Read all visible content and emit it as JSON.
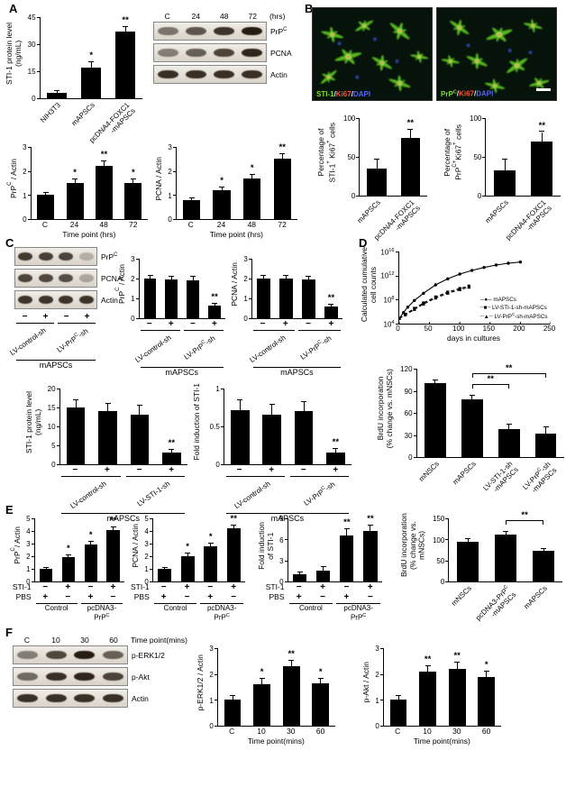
{
  "panels": {
    "A": "A",
    "B": "B",
    "C": "C",
    "D": "D",
    "E": "E",
    "F": "F"
  },
  "colors": {
    "bar": "#000000",
    "cell_green": "#55b31c",
    "ki67_red": "#ff5030",
    "dapi_blue": "#5566ff",
    "scale_bar": "#ffffff"
  },
  "micrographs": {
    "m1": {
      "caption": [
        {
          "text": "STI-1",
          "color": "#7de02a"
        },
        {
          "text": "/",
          "color": "#e8e8e8"
        },
        {
          "text": "Ki67",
          "color": "#ff5030"
        },
        {
          "text": "/",
          "color": "#e8e8e8"
        },
        {
          "text": "DAPI",
          "color": "#5566ff"
        }
      ]
    },
    "m2": {
      "caption": [
        {
          "text": "PrP^{C}",
          "color": "#7de02a"
        },
        {
          "text": "/",
          "color": "#e8e8e8"
        },
        {
          "text": "Ki67",
          "color": "#ff5030"
        },
        {
          "text": "/",
          "color": "#e8e8e8"
        },
        {
          "text": "DAPI",
          "color": "#5566ff"
        }
      ],
      "scale_bar": true
    }
  },
  "blots": [
    {
      "id": "blotA",
      "header": {
        "labels": [
          "C",
          "24",
          "48",
          "72"
        ],
        "suffix": "(hrs)"
      },
      "rows": [
        {
          "label": "PrP^{C}",
          "bands": [
            0.55,
            0.7,
            0.88,
            1
          ]
        },
        {
          "label": "PCNA",
          "bands": [
            0.5,
            0.65,
            0.8,
            0.95
          ]
        },
        {
          "label": "Actin",
          "bands": [
            0.9,
            0.9,
            0.9,
            0.9
          ]
        }
      ]
    },
    {
      "id": "blotC",
      "rows": [
        {
          "label": "PrP^{C}",
          "bands": [
            0.85,
            0.82,
            0.8,
            0.25
          ]
        },
        {
          "label": "PCNA",
          "bands": [
            0.8,
            0.78,
            0.75,
            0.3
          ]
        },
        {
          "label": "Actin",
          "bands": [
            0.88,
            0.88,
            0.88,
            0.88
          ]
        }
      ],
      "matrix": {
        "rows": [
          {
            "label": "",
            "cells": [
              "−",
              "+",
              "−",
              "+"
            ]
          }
        ],
        "rot_groups": true,
        "groups": [
          {
            "label": "LV-control-sh",
            "from": 0,
            "to": 1
          },
          {
            "label": "LV-PrP^{C}-sh",
            "from": 2,
            "to": 3
          }
        ],
        "footer": "mAPSCs"
      }
    },
    {
      "id": "blotF",
      "header": {
        "labels": [
          "C",
          "10",
          "30",
          "60"
        ],
        "suffix": "Time point(mins)"
      },
      "rows": [
        {
          "label": "p-ERK1/2",
          "bands": [
            0.5,
            0.78,
            1,
            0.65
          ]
        },
        {
          "label": "p-Akt",
          "bands": [
            0.6,
            0.9,
            0.95,
            0.8
          ]
        },
        {
          "label": "Actin",
          "bands": [
            0.9,
            0.9,
            0.9,
            0.9
          ]
        }
      ]
    }
  ],
  "chart_data": [
    {
      "id": "a1",
      "type": "bar",
      "ylabel": "STI-1 protein level\n(ng/mL)",
      "ymax": 45,
      "yticks": [
        0,
        15,
        30,
        45
      ],
      "values": [
        3,
        17,
        37
      ],
      "errors": [
        1,
        3,
        2.5
      ],
      "sig": [
        "",
        "*",
        "**"
      ],
      "xrot": true,
      "xlabels": [
        "NIH3T3",
        "mAPSCs",
        "pcDNA4-FOXC1\n-mAPSCs"
      ]
    },
    {
      "id": "a2",
      "type": "bar",
      "ylabel": "PrP^{C} / Actin",
      "ymax": 3,
      "yticks": [
        0,
        1,
        2,
        3
      ],
      "values": [
        1,
        1.5,
        2.2,
        1.5
      ],
      "errors": [
        0.1,
        0.15,
        0.2,
        0.15
      ],
      "sig": [
        "",
        "*",
        "**",
        "*"
      ],
      "xlabels": [
        "C",
        "24",
        "48",
        "72"
      ],
      "xtitle": "Time point (hrs)"
    },
    {
      "id": "a3",
      "type": "bar",
      "ylabel": "PCNA / Actin",
      "ymax": 3,
      "yticks": [
        0,
        1,
        2,
        3
      ],
      "values": [
        0.8,
        1.2,
        1.7,
        2.5
      ],
      "errors": [
        0.08,
        0.1,
        0.15,
        0.2
      ],
      "sig": [
        "",
        "*",
        "*",
        "**"
      ],
      "xlabels": [
        "C",
        "24",
        "48",
        "72"
      ],
      "xtitle": "Time point (hrs)"
    },
    {
      "id": "b1",
      "type": "bar",
      "ylabel": "Percentage of\nSTI-1^{+} Ki67^{+} cells",
      "ymax": 100,
      "yticks": [
        0,
        50,
        100
      ],
      "values": [
        35,
        75
      ],
      "errors": [
        12,
        10
      ],
      "sig": [
        "",
        "**"
      ],
      "xrot": true,
      "xlabels": [
        "mAPSCs",
        "pcDNA4-FOXC1\n-mAPSCs"
      ]
    },
    {
      "id": "b2",
      "type": "bar",
      "ylabel": "Percentage of\nPrP^{C+}Ki67^{+} cells",
      "ymax": 100,
      "yticks": [
        0,
        50,
        100
      ],
      "values": [
        32,
        70
      ],
      "errors": [
        15,
        12
      ],
      "sig": [
        "",
        "**"
      ],
      "xrot": true,
      "xlabels": [
        "mAPSCs",
        "pcDNA4-FOXC1\n-mAPSCs"
      ]
    },
    {
      "id": "c1",
      "type": "bar",
      "ylabel": "PrP^{C} / Actin",
      "ymax": 3,
      "yticks": [
        0,
        1,
        2,
        3
      ],
      "values": [
        2,
        1.95,
        1.9,
        0.65
      ],
      "errors": [
        0.15,
        0.15,
        0.2,
        0.1
      ],
      "sig": [
        "",
        "",
        "",
        "**"
      ],
      "matrix": {
        "rows": [
          {
            "label": "",
            "cells": [
              "−",
              "+",
              "−",
              "+"
            ]
          }
        ],
        "rot_groups": true,
        "groups": [
          {
            "label": "LV-control-sh",
            "from": 0,
            "to": 1
          },
          {
            "label": "LV-PrP^{C}-sh",
            "from": 2,
            "to": 3
          }
        ],
        "footer": "mAPSCs"
      }
    },
    {
      "id": "c2",
      "type": "bar",
      "ylabel": "PCNA / Actin",
      "ymax": 3,
      "yticks": [
        0,
        1,
        2,
        3
      ],
      "values": [
        2,
        2,
        1.95,
        0.6
      ],
      "errors": [
        0.15,
        0.15,
        0.15,
        0.1
      ],
      "sig": [
        "",
        "",
        "",
        "**"
      ],
      "matrix": {
        "rows": [
          {
            "label": "",
            "cells": [
              "−",
              "+",
              "−",
              "+"
            ]
          }
        ],
        "rot_groups": true,
        "groups": [
          {
            "label": "LV-control-sh",
            "from": 0,
            "to": 1
          },
          {
            "label": "LV-PrP^{C}-sh",
            "from": 2,
            "to": 3
          }
        ],
        "footer": "mAPSCs"
      }
    },
    {
      "id": "c3",
      "type": "bar",
      "ylabel": "STI-1 protein level\n(ng/mL)",
      "ymax": 20,
      "yticks": [
        0,
        5,
        10,
        15,
        20
      ],
      "values": [
        15,
        14,
        13,
        3
      ],
      "errors": [
        2,
        2,
        2.5,
        0.8
      ],
      "sig": [
        "",
        "",
        "",
        "**"
      ],
      "matrix": {
        "rows": [
          {
            "label": "",
            "cells": [
              "−",
              "+",
              "−",
              "+"
            ]
          }
        ],
        "rot_groups": true,
        "groups": [
          {
            "label": "LV-control-sh",
            "from": 0,
            "to": 1
          },
          {
            "label": "LV-STI-1-sh",
            "from": 2,
            "to": 3
          }
        ],
        "footer": "mAPSCs"
      }
    },
    {
      "id": "c4",
      "type": "bar",
      "ylabel": "Fold induction of STI-1",
      "ymax": 1,
      "yticks": [
        0,
        0.5,
        1
      ],
      "values": [
        0.72,
        0.66,
        0.7,
        0.15
      ],
      "errors": [
        0.12,
        0.12,
        0.12,
        0.05
      ],
      "sig": [
        "",
        "",
        "",
        "**"
      ],
      "matrix": {
        "rows": [
          {
            "label": "",
            "cells": [
              "−",
              "+",
              "−",
              "+"
            ]
          }
        ],
        "rot_groups": true,
        "groups": [
          {
            "label": "LV-control-sh",
            "from": 0,
            "to": 1
          },
          {
            "label": "LV-PrP^{C}-sh",
            "from": 2,
            "to": 3
          }
        ],
        "footer": "mAPSCs"
      }
    },
    {
      "id": "d1",
      "type": "line",
      "ylabel": "Calculated cumulative\ncell counts",
      "xlabel": "days in cultures",
      "x_ticks": [
        0,
        50,
        100,
        150,
        200,
        250
      ],
      "y_tick_exponents": [
        4,
        8,
        12,
        16
      ],
      "series": [
        {
          "name": "mAPSCs",
          "style": "solid",
          "marker": "circle",
          "points": [
            [
              0,
              5
            ],
            [
              7,
              6
            ],
            [
              14,
              6.9
            ],
            [
              25,
              8
            ],
            [
              40,
              9.2
            ],
            [
              60,
              10.6
            ],
            [
              80,
              11.6
            ],
            [
              100,
              12.4
            ],
            [
              120,
              13
            ],
            [
              140,
              13.5
            ],
            [
              160,
              13.9
            ],
            [
              180,
              14.2
            ],
            [
              200,
              14.4
            ]
          ]
        },
        {
          "name": "LV-STI-1-sh-mAPSCs",
          "style": "dashed",
          "marker": "square",
          "points": [
            [
              0,
              5
            ],
            [
              10,
              5.7
            ],
            [
              25,
              6.7
            ],
            [
              40,
              7.6
            ],
            [
              60,
              8.6
            ],
            [
              80,
              9.4
            ],
            [
              100,
              10
            ],
            [
              115,
              10.4
            ]
          ]
        },
        {
          "name": "LV-PrP^{C}-sh-mAPSCs",
          "style": "dashed",
          "marker": "triangle",
          "points": [
            [
              0,
              5
            ],
            [
              10,
              5.6
            ],
            [
              25,
              6.5
            ],
            [
              40,
              7.4
            ],
            [
              60,
              8.4
            ],
            [
              80,
              9.2
            ],
            [
              100,
              9.8
            ],
            [
              115,
              10.2
            ]
          ]
        }
      ]
    },
    {
      "id": "d2",
      "type": "bar",
      "ylabel": "BrdU incorporation\n(% change vs. mNSCs)",
      "ymax": 120,
      "yticks": [
        0,
        30,
        60,
        90,
        120
      ],
      "values": [
        100,
        78,
        38,
        32
      ],
      "errors": [
        4,
        5,
        6,
        8
      ],
      "sig": [
        "",
        "",
        "",
        ""
      ],
      "brackets": [
        {
          "from": 1,
          "to": 2,
          "label": "**"
        },
        {
          "from": 1,
          "to": 3,
          "label": "**"
        }
      ],
      "xrot": true,
      "xlabels": [
        "mNSCs",
        "mAPSCs",
        "LV-STI-1-sh\n-mAPSCs",
        "LV-PrP^{C}-sh\n-mAPSCs"
      ]
    },
    {
      "id": "e1",
      "type": "bar",
      "ylabel": "PrP^{C}/ Actin",
      "ymax": 5,
      "yticks": [
        0,
        1,
        2,
        3,
        4,
        5
      ],
      "values": [
        1,
        1.9,
        2.9,
        4.1
      ],
      "errors": [
        0.1,
        0.2,
        0.25,
        0.2
      ],
      "sig": [
        "",
        "*",
        "*",
        "**"
      ],
      "matrix": {
        "rows": [
          {
            "label": "STI-1",
            "cells": [
              "−",
              "+",
              "−",
              "+"
            ]
          },
          {
            "label": "PBS",
            "cells": [
              "+",
              "−",
              "+",
              "−"
            ]
          }
        ],
        "groups": [
          {
            "label": "Control",
            "from": 0,
            "to": 1
          },
          {
            "label": "pcDNA3-\nPrP^{C}",
            "from": 2,
            "to": 3
          }
        ]
      }
    },
    {
      "id": "e2",
      "type": "bar",
      "ylabel": "PCNA / Actin",
      "ymax": 5,
      "yticks": [
        0,
        1,
        2,
        3,
        4,
        5
      ],
      "values": [
        1,
        2,
        2.8,
        4.2
      ],
      "errors": [
        0.1,
        0.2,
        0.2,
        0.25
      ],
      "sig": [
        "",
        "*",
        "*",
        "**"
      ],
      "matrix": {
        "rows": [
          {
            "label": "STI-1",
            "cells": [
              "−",
              "+",
              "−",
              "+"
            ]
          },
          {
            "label": "PBS",
            "cells": [
              "+",
              "−",
              "+",
              "−"
            ]
          }
        ],
        "groups": [
          {
            "label": "Control",
            "from": 0,
            "to": 1
          },
          {
            "label": "pcDNA3-\nPrP^{C}",
            "from": 2,
            "to": 3
          }
        ]
      }
    },
    {
      "id": "e3",
      "type": "bar",
      "ylabel": "Fold induction\nof STI-1",
      "ymax": 9,
      "yticks": [
        0,
        3,
        6,
        9
      ],
      "values": [
        1,
        1.5,
        6.5,
        7.2
      ],
      "errors": [
        0.3,
        0.5,
        1,
        0.8
      ],
      "sig": [
        "",
        "",
        "**",
        "**"
      ],
      "matrix": {
        "rows": [
          {
            "label": "STI-1",
            "cells": [
              "−",
              "+",
              "−",
              "+"
            ]
          },
          {
            "label": "PBS",
            "cells": [
              "+",
              "−",
              "+",
              "−"
            ]
          }
        ],
        "groups": [
          {
            "label": "Control",
            "from": 0,
            "to": 1
          },
          {
            "label": "pcDNA3-\nPrP^{C}",
            "from": 2,
            "to": 3
          }
        ]
      }
    },
    {
      "id": "e4",
      "type": "bar",
      "ylabel": "BrdU incorporation\n(% change vs. mNSCs)",
      "ymax": 150,
      "yticks": [
        0,
        50,
        100,
        150
      ],
      "values": [
        95,
        112,
        72
      ],
      "errors": [
        5,
        6,
        5
      ],
      "sig": [
        "",
        "",
        ""
      ],
      "brackets": [
        {
          "from": 1,
          "to": 2,
          "label": "**"
        }
      ],
      "xrot": true,
      "xlabels": [
        "mNSCs",
        "pcDNA3-PrP^{C}\n-mAPSCs",
        "mAPSCs"
      ]
    },
    {
      "id": "f1",
      "type": "bar",
      "ylabel": "p-ERK1/2 / Actin",
      "ymax": 3,
      "yticks": [
        0,
        1,
        2,
        3
      ],
      "values": [
        1,
        1.6,
        2.3,
        1.65
      ],
      "errors": [
        0.15,
        0.2,
        0.2,
        0.15
      ],
      "sig": [
        "",
        "*",
        "**",
        "*"
      ],
      "xlabels": [
        "C",
        "10",
        "30",
        "60"
      ],
      "xtitle": "Time point(mins)"
    },
    {
      "id": "f2",
      "type": "bar",
      "ylabel": "p-Akt / Actin",
      "ymax": 3,
      "yticks": [
        0,
        1,
        2,
        3
      ],
      "values": [
        1,
        2.1,
        2.2,
        1.9
      ],
      "errors": [
        0.15,
        0.2,
        0.25,
        0.2
      ],
      "sig": [
        "",
        "**",
        "**",
        "*"
      ],
      "xlabels": [
        "C",
        "10",
        "30",
        "60"
      ],
      "xtitle": "Time point(mins)"
    }
  ]
}
